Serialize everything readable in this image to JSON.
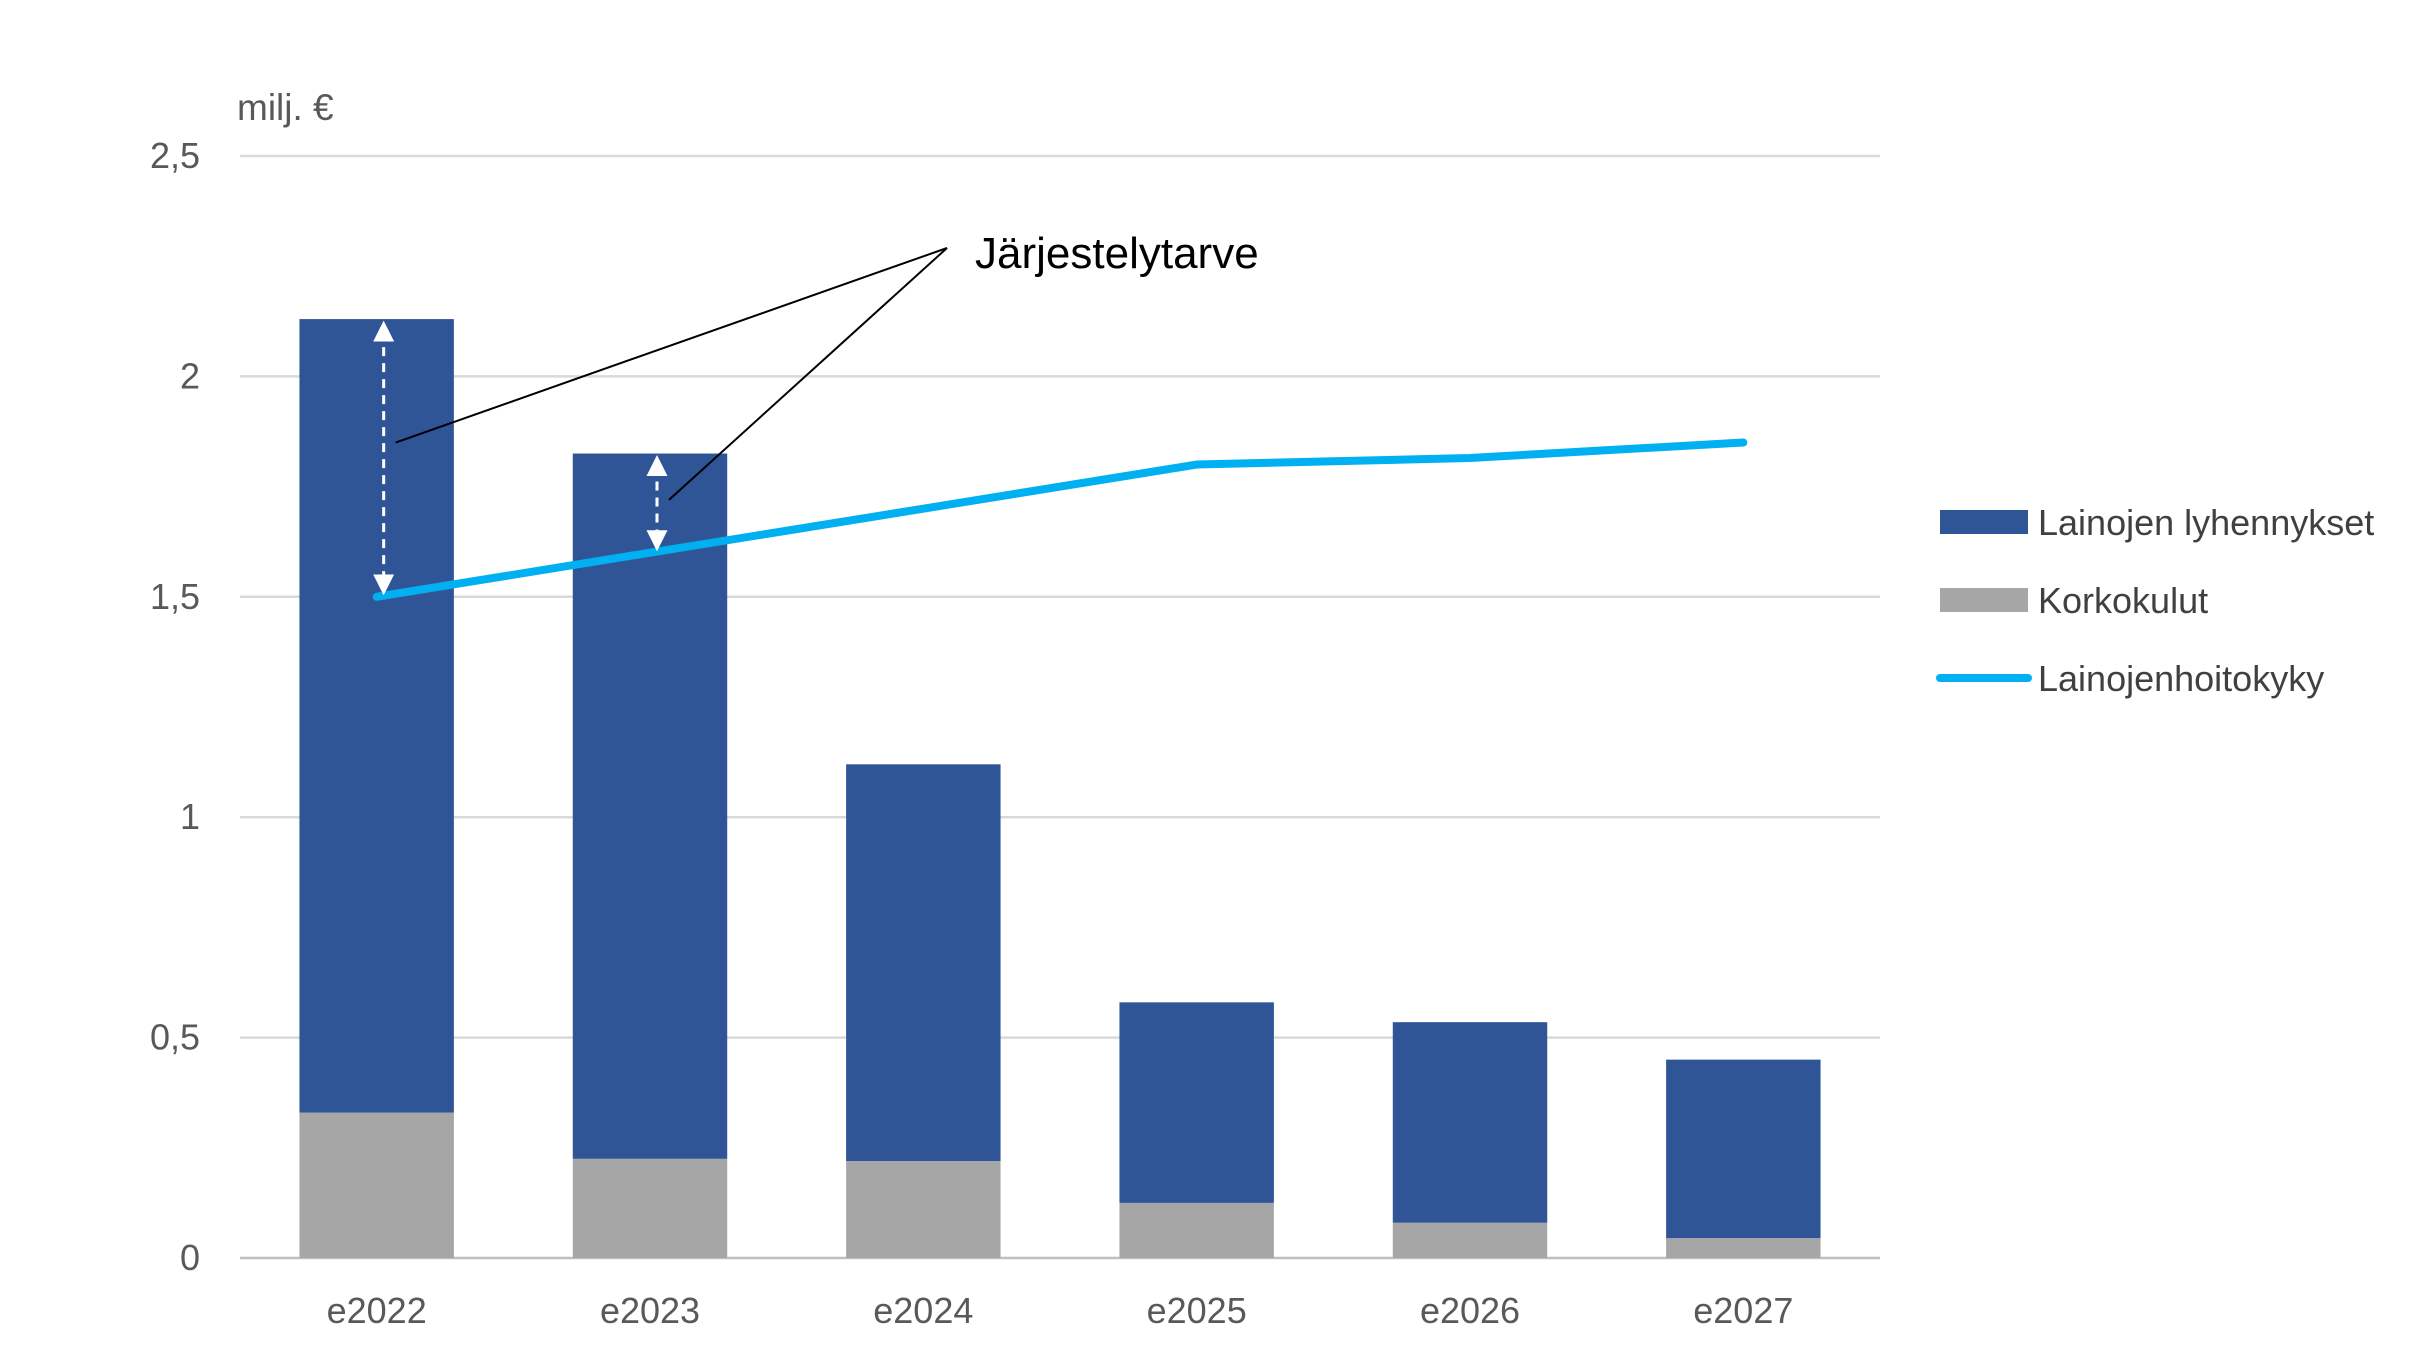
{
  "chart_data": {
    "type": "bar",
    "stacked": true,
    "categories": [
      "e2022",
      "e2023",
      "e2024",
      "e2025",
      "e2026",
      "e2027"
    ],
    "ylabel": "milj. €",
    "ylim": [
      0,
      2.5
    ],
    "yticks": [
      0,
      0.5,
      1,
      1.5,
      2,
      2.5
    ],
    "ytick_labels": [
      "0",
      "0,5",
      "1",
      "1,5",
      "2",
      "2,5"
    ],
    "grid": true,
    "legend_position": "right",
    "series": [
      {
        "name": "Korkokulut",
        "kind": "bar",
        "color": "#a6a6a6",
        "values": [
          0.33,
          0.225,
          0.22,
          0.125,
          0.08,
          0.045
        ]
      },
      {
        "name": "Lainojen lyhennykset",
        "kind": "bar",
        "color": "#2f5597",
        "values": [
          1.8,
          1.6,
          0.9,
          0.455,
          0.455,
          0.405
        ]
      },
      {
        "name": "Lainojenhoitokyky",
        "kind": "line",
        "color": "#00b0f0",
        "values": [
          1.5,
          1.6,
          1.7,
          1.8,
          1.815,
          1.85
        ]
      }
    ],
    "legend_order": [
      "Lainojen lyhennykset",
      "Korkokulut",
      "Lainojenhoitokyky"
    ],
    "annotation": {
      "text": "Järjestelytarve",
      "gaps": [
        {
          "category": "e2022",
          "from": 1.5,
          "to": 2.13,
          "pointer_y": 1.85
        },
        {
          "category": "e2023",
          "from": 1.6,
          "to": 1.825,
          "pointer_y": 1.72
        }
      ]
    }
  }
}
